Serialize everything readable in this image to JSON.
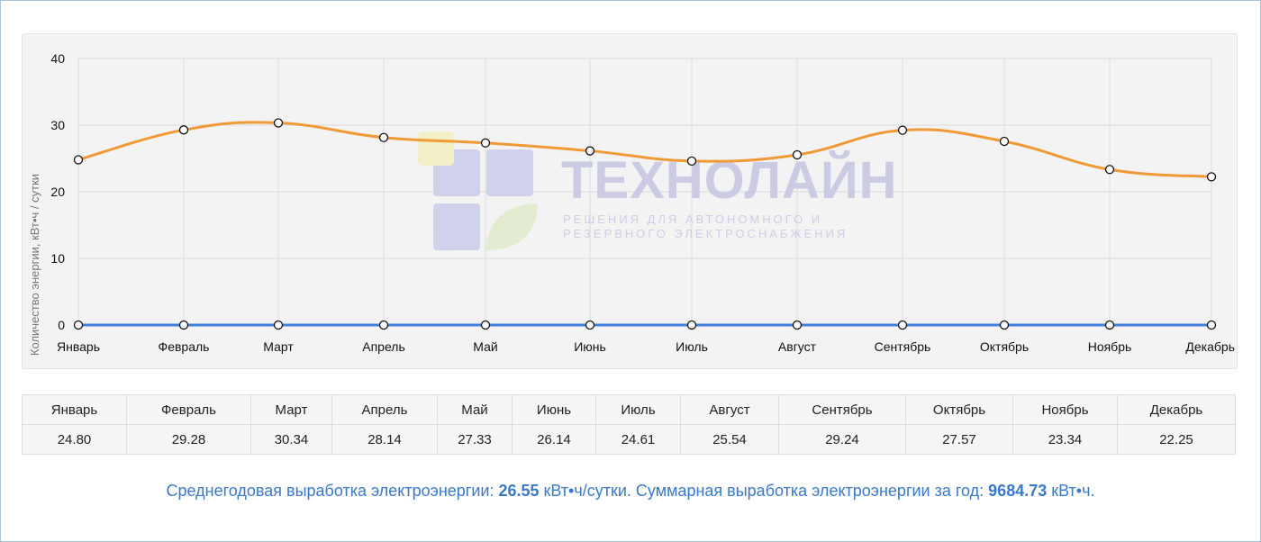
{
  "chart_data": {
    "type": "line",
    "categories": [
      "Январь",
      "Февраль",
      "Март",
      "Апрель",
      "Май",
      "Июнь",
      "Июль",
      "Август",
      "Сентябрь",
      "Октябрь",
      "Ноябрь",
      "Декабрь"
    ],
    "series": [
      {
        "values": [
          24.8,
          29.28,
          30.34,
          28.14,
          27.33,
          26.14,
          24.61,
          25.54,
          29.24,
          27.57,
          23.34,
          22.25
        ],
        "color": "#f09a37"
      },
      {
        "values": [
          0,
          0,
          0,
          0,
          0,
          0,
          0,
          0,
          0,
          0,
          0,
          0
        ],
        "color": "#3f7fd9"
      }
    ],
    "title": "",
    "xlabel": "",
    "ylabel": "Количество энергии, кВт•ч / сутки",
    "ylim": [
      0,
      40
    ],
    "yticks": [
      0,
      10,
      20,
      30,
      40
    ],
    "grid": true,
    "legend": "none"
  },
  "watermark": {
    "title": "ТЕХНОЛАЙН",
    "subtitle_line1": "РЕШЕНИЯ ДЛЯ АВТОНОМНОГО И",
    "subtitle_line2": "РЕЗЕРВНОГО ЭЛЕКТРОСНАБЖЕНИЯ"
  },
  "table": {
    "headers": [
      "Январь",
      "Февраль",
      "Март",
      "Апрель",
      "Май",
      "Июнь",
      "Июль",
      "Август",
      "Сентябрь",
      "Октябрь",
      "Ноябрь",
      "Декабрь"
    ],
    "values": [
      "24.80",
      "29.28",
      "30.34",
      "28.14",
      "27.33",
      "26.14",
      "24.61",
      "25.54",
      "29.24",
      "27.57",
      "23.34",
      "22.25"
    ]
  },
  "summary": {
    "avg_label": "Среднегодовая выработка электроэнергии: ",
    "avg_value": "26.55",
    "avg_unit": " кВт•ч/сутки. ",
    "total_label": "Суммарная выработка электроэнергии за год: ",
    "total_value": "9684.73",
    "total_unit": " кВт•ч."
  }
}
